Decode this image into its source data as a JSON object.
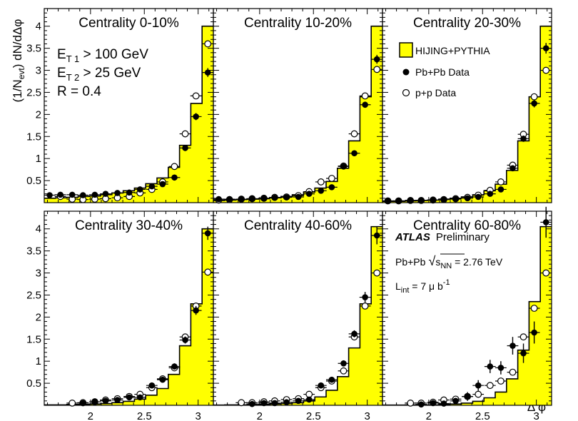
{
  "chart_data": {
    "type": "histogram-with-points",
    "xlabel": "Δ φ",
    "ylabel": "(1/N_evt) dN/dΔφ",
    "ylabel_parts": {
      "pre": "(1/N",
      "sub": "evt",
      "post": ") dN/dΔφ"
    },
    "xlim": [
      1.57,
      3.1416
    ],
    "ylim": [
      0,
      4.4
    ],
    "x_ticks": [
      2,
      2.5,
      3
    ],
    "x_tick_labels": [
      "2",
      "2.5",
      "3"
    ],
    "y_ticks": [
      0.5,
      1,
      1.5,
      2,
      2.5,
      3,
      3.5,
      4
    ],
    "y_tick_labels": [
      "0.5",
      "1",
      "1.5",
      "2",
      "2.5",
      "3",
      "3.5",
      "4"
    ],
    "bin_centers": [
      1.62,
      1.72,
      1.83,
      1.93,
      2.04,
      2.14,
      2.25,
      2.36,
      2.46,
      2.57,
      2.67,
      2.78,
      2.88,
      2.98,
      3.09
    ],
    "legend": {
      "hijing_label": "HIJING+PYTHIA",
      "pbpb_label": "Pb+Pb Data",
      "pp_label": "p+p Data"
    },
    "info_text": {
      "et1_main": "E",
      "et1_sub": "T 1",
      "et1_rest": " > 100 GeV",
      "et2_main": "E",
      "et2_sub": "T 2",
      "et2_rest": " > 25 GeV",
      "radius": "R = 0.4"
    },
    "atlas_text": {
      "atlas": "ATLAS",
      "preliminary": "Preliminary",
      "system": "Pb+Pb",
      "sqrt_symbol": "√",
      "s_main": "s",
      "s_sub": "NN",
      "energy": " = 2.76 TeV",
      "lumi_main": "L",
      "lumi_sub": "int",
      "lumi_rest": " = 7 μ b",
      "lumi_sup": "-1"
    },
    "panels": [
      {
        "title": "Centrality  0-10%",
        "hijing": [
          0.1,
          0.11,
          0.12,
          0.14,
          0.15,
          0.18,
          0.22,
          0.27,
          0.33,
          0.43,
          0.56,
          0.8,
          1.3,
          2.25,
          4.0
        ],
        "pbpb": [
          0.17,
          0.18,
          0.18,
          0.17,
          0.18,
          0.2,
          0.22,
          0.23,
          0.3,
          0.37,
          0.42,
          0.57,
          1.24,
          1.95,
          2.95
        ],
        "pbpb_err": [
          0.03,
          0.03,
          0.03,
          0.03,
          0.03,
          0.03,
          0.03,
          0.03,
          0.03,
          0.04,
          0.04,
          0.05,
          0.07,
          0.08,
          0.1
        ],
        "pp": [
          null,
          0.14,
          0.08,
          0.07,
          0.08,
          0.09,
          0.11,
          0.14,
          0.22,
          0.3,
          0.47,
          0.82,
          1.56,
          2.42,
          3.6
        ]
      },
      {
        "title": "Centrality 10-20%",
        "hijing": [
          0.05,
          0.06,
          0.07,
          0.08,
          0.09,
          0.11,
          0.14,
          0.18,
          0.24,
          0.33,
          0.48,
          0.78,
          1.4,
          2.4,
          4.0
        ],
        "pbpb": [
          0.08,
          0.08,
          0.08,
          0.09,
          0.1,
          0.11,
          0.12,
          0.13,
          0.2,
          0.27,
          0.35,
          0.82,
          1.12,
          2.22,
          3.25
        ],
        "pbpb_err": [
          0.02,
          0.02,
          0.02,
          0.02,
          0.02,
          0.02,
          0.02,
          0.03,
          0.03,
          0.03,
          0.04,
          0.04,
          0.06,
          0.07,
          0.1
        ],
        "pp": [
          0.06,
          0.07,
          0.08,
          0.09,
          0.1,
          0.12,
          0.13,
          0.16,
          0.25,
          0.47,
          0.55,
          0.83,
          1.56,
          2.42,
          3.02
        ]
      },
      {
        "title": "Centrality 20-30%",
        "hijing": [
          0.03,
          0.03,
          0.04,
          0.05,
          0.06,
          0.08,
          0.1,
          0.13,
          0.18,
          0.27,
          0.42,
          0.73,
          1.4,
          2.4,
          4.0
        ],
        "pbpb": [
          0.04,
          0.04,
          0.05,
          0.05,
          0.06,
          0.07,
          0.08,
          0.1,
          0.13,
          0.2,
          0.3,
          0.78,
          1.45,
          2.25,
          3.5
        ],
        "pbpb_err": [
          0.02,
          0.02,
          0.02,
          0.02,
          0.02,
          0.02,
          0.02,
          0.02,
          0.03,
          0.03,
          0.04,
          0.05,
          0.07,
          0.09,
          0.12
        ],
        "pp": [
          0.04,
          0.04,
          0.05,
          0.05,
          0.06,
          0.07,
          0.09,
          0.12,
          0.17,
          0.28,
          0.47,
          0.85,
          1.55,
          2.4,
          3.0
        ]
      },
      {
        "title": "Centrality 30-40%",
        "hijing": [
          0.01,
          0.01,
          0.02,
          0.02,
          0.03,
          0.04,
          0.06,
          0.09,
          0.14,
          0.23,
          0.38,
          0.7,
          1.35,
          2.3,
          4.0
        ],
        "pbpb": [
          null,
          null,
          null,
          0.05,
          0.08,
          0.1,
          0.12,
          0.18,
          0.18,
          0.45,
          0.58,
          0.88,
          1.48,
          2.15,
          3.9
        ],
        "pbpb_err": [
          0,
          0,
          0,
          0.03,
          0.03,
          0.03,
          0.03,
          0.03,
          0.04,
          0.05,
          0.05,
          0.07,
          0.08,
          0.1,
          0.15
        ],
        "pp": [
          null,
          null,
          0.05,
          0.06,
          0.08,
          0.12,
          0.15,
          0.2,
          0.25,
          0.4,
          0.6,
          0.85,
          1.55,
          2.25,
          3.02
        ]
      },
      {
        "title": "Centrality 40-60%",
        "hijing": [
          0.005,
          0.01,
          0.01,
          0.01,
          0.02,
          0.03,
          0.04,
          0.06,
          0.1,
          0.19,
          0.34,
          0.65,
          1.3,
          2.3,
          4.05
        ],
        "pbpb": [
          null,
          null,
          null,
          0.03,
          0.05,
          0.05,
          0.07,
          0.1,
          0.13,
          0.45,
          0.58,
          0.95,
          1.62,
          2.45,
          3.85
        ],
        "pbpb_err": [
          0,
          0,
          0,
          0.03,
          0.03,
          0.03,
          0.03,
          0.03,
          0.04,
          0.05,
          0.05,
          0.07,
          0.08,
          0.12,
          0.2
        ],
        "pp": [
          null,
          null,
          0.06,
          0.06,
          0.08,
          0.1,
          0.13,
          0.15,
          0.25,
          0.4,
          0.55,
          0.78,
          1.55,
          2.25,
          3.0
        ]
      },
      {
        "title": "Centrality 60-80%",
        "hijing": [
          0.005,
          0.005,
          0.01,
          0.01,
          0.01,
          0.02,
          0.03,
          0.05,
          0.09,
          0.17,
          0.3,
          0.6,
          1.25,
          2.35,
          4.05
        ],
        "pbpb": [
          null,
          null,
          null,
          0.02,
          0.05,
          0.04,
          0.1,
          0.2,
          0.45,
          0.88,
          0.85,
          1.35,
          1.18,
          1.65,
          4.15
        ],
        "pbpb_err": [
          0,
          0,
          0,
          0.05,
          0.05,
          0.05,
          0.07,
          0.1,
          0.12,
          0.15,
          0.15,
          0.2,
          0.22,
          0.25,
          0.35
        ],
        "pp": [
          null,
          null,
          0.05,
          0.05,
          0.07,
          0.12,
          0.14,
          0.2,
          0.25,
          0.45,
          0.55,
          0.75,
          1.55,
          2.2,
          3.0
        ]
      }
    ]
  },
  "colors": {
    "fill": "#ffff00",
    "line": "#000000",
    "background": "#ffffff"
  }
}
